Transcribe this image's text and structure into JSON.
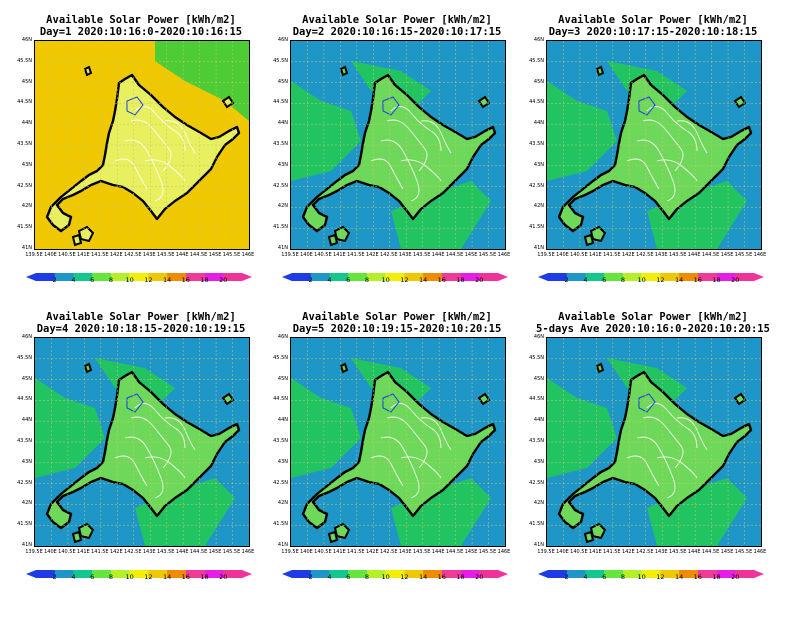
{
  "panels": [
    {
      "title_line1": "Available Solar Power [kWh/m2]",
      "title_line2": "Day=1 2020:10:16:0-2020:10:16:15",
      "background_level": 12
    },
    {
      "title_line1": "Available Solar Power [kWh/m2]",
      "title_line2": "Day=2 2020:10:16:15-2020:10:17:15",
      "background_level": 2
    },
    {
      "title_line1": "Available Solar Power [kWh/m2]",
      "title_line2": "Day=3 2020:10:17:15-2020:10:18:15",
      "background_level": 2
    },
    {
      "title_line1": "Available Solar Power [kWh/m2]",
      "title_line2": "Day=4 2020:10:18:15-2020:10:19:15",
      "background_level": 2
    },
    {
      "title_line1": "Available Solar Power [kWh/m2]",
      "title_line2": "Day=5 2020:10:19:15-2020:10:20:15",
      "background_level": 2
    },
    {
      "title_line1": "Available Solar Power [kWh/m2]",
      "title_line2": "5-days Ave 2020:10:16:0-2020:10:20:15",
      "background_level": 2
    }
  ],
  "lat_labels": [
    "46N",
    "45.5N",
    "45N",
    "44.5N",
    "44N",
    "43.5N",
    "43N",
    "42.5N",
    "42N",
    "41.5N",
    "41N"
  ],
  "lon_labels": [
    "139.5E",
    "140E",
    "140.5E",
    "141E",
    "141.5E",
    "142E",
    "142.5E",
    "143E",
    "143.5E",
    "144E",
    "144.5E",
    "145E",
    "145.5E",
    "146E"
  ],
  "colorbar": {
    "labels": [
      "2",
      "4",
      "6",
      "8",
      "10",
      "12",
      "14",
      "16",
      "18",
      "20"
    ],
    "colors": [
      "#1e3ce6",
      "#1e96c8",
      "#14c88c",
      "#64e63c",
      "#b4f028",
      "#f0f000",
      "#f0c800",
      "#f08c00",
      "#f03c96",
      "#e61ee6",
      "#f0329a"
    ]
  },
  "colors": {
    "low": "#0a1ef0",
    "mid": "#22cc4e",
    "green": "#3ccc3c",
    "high": "#f0f000",
    "coast": "#000000",
    "contour": "#ffffff"
  }
}
